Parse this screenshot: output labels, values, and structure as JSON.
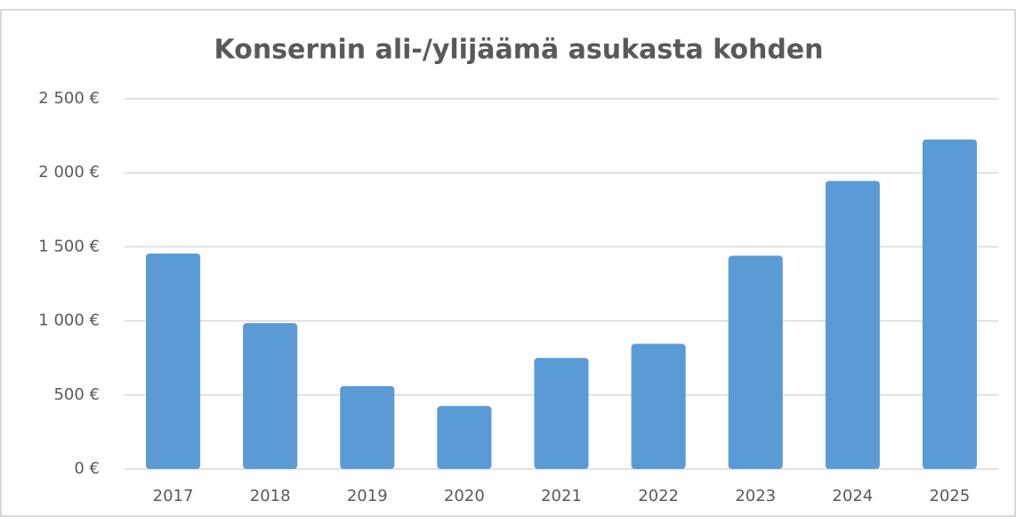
{
  "chart_data": {
    "type": "bar",
    "title": "Konsernin ali-/ylijäämä asukasta kohden",
    "categories": [
      "2017",
      "2018",
      "2019",
      "2020",
      "2021",
      "2022",
      "2023",
      "2024",
      "2025"
    ],
    "values": [
      1455,
      985,
      560,
      425,
      750,
      845,
      1440,
      1945,
      2225
    ],
    "color": "#5b9bd5",
    "ylim": [
      0,
      2500
    ],
    "yticks": [
      {
        "value": 0,
        "label": "0 €"
      },
      {
        "value": 500,
        "label": "500 €"
      },
      {
        "value": 1000,
        "label": "1 000 €"
      },
      {
        "value": 1500,
        "label": "1 500 €"
      },
      {
        "value": 2000,
        "label": "2 000 €"
      },
      {
        "value": 2500,
        "label": "2 500 €"
      }
    ],
    "grid": true
  }
}
